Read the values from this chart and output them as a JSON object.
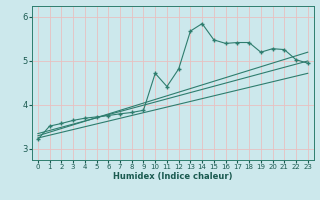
{
  "title": "",
  "xlabel": "Humidex (Indice chaleur)",
  "ylabel": "",
  "background_color": "#cce8ec",
  "grid_color": "#b8d8dc",
  "line_color": "#2e7d6e",
  "xlim": [
    -0.5,
    23.5
  ],
  "ylim": [
    2.75,
    6.25
  ],
  "yticks": [
    3,
    4,
    5,
    6
  ],
  "xticks": [
    0,
    1,
    2,
    3,
    4,
    5,
    6,
    7,
    8,
    9,
    10,
    11,
    12,
    13,
    14,
    15,
    16,
    17,
    18,
    19,
    20,
    21,
    22,
    23
  ],
  "series1": [
    3.22,
    3.52,
    3.58,
    3.65,
    3.7,
    3.73,
    3.76,
    3.8,
    3.83,
    3.88,
    4.72,
    4.42,
    4.82,
    5.68,
    5.85,
    5.48,
    5.4,
    5.42,
    5.42,
    5.2,
    5.28,
    5.26,
    5.03,
    4.95
  ],
  "line1_x": [
    0,
    23
  ],
  "line1_y": [
    3.3,
    5.2
  ],
  "line2_x": [
    0,
    23
  ],
  "line2_y": [
    3.35,
    5.0
  ],
  "line3_x": [
    0,
    23
  ],
  "line3_y": [
    3.25,
    4.72
  ]
}
